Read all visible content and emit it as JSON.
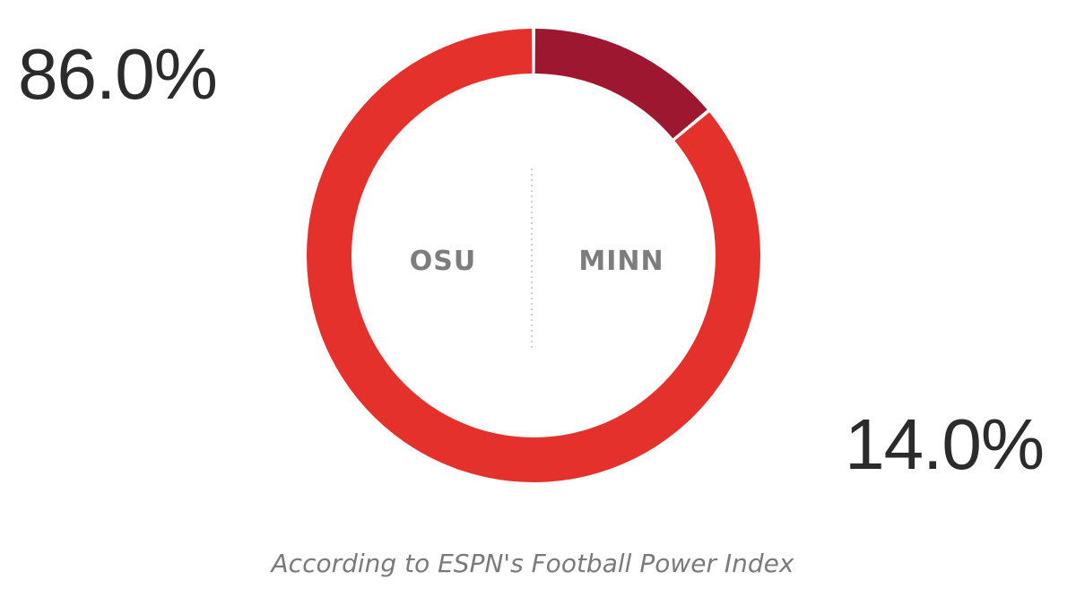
{
  "chart_data": {
    "type": "pie",
    "donut": true,
    "slices": [
      {
        "team": "MINN",
        "value": 14.0,
        "color": "#9d1730"
      },
      {
        "team": "OSU",
        "value": 86.0,
        "color": "#e5312b"
      }
    ],
    "labels": {
      "left_team": "OSU",
      "right_team": "MINN",
      "osu_pct": "86.0%",
      "minn_pct": "14.0%"
    },
    "caption": "According to ESPN's Football Power Index"
  }
}
